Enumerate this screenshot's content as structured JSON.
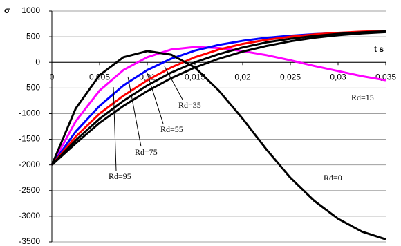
{
  "chart_data": {
    "type": "line",
    "y_label": "σ",
    "x_label": "t s",
    "x": [
      0,
      0.0025,
      0.005,
      0.0075,
      0.01,
      0.0125,
      0.015,
      0.0175,
      0.02,
      0.0225,
      0.025,
      0.0275,
      0.03,
      0.0325,
      0.035
    ],
    "series": [
      {
        "name": "Rd=0",
        "color": "#000000",
        "values": [
          -2000,
          -900,
          -250,
          100,
          220,
          150,
          -100,
          -550,
          -1100,
          -1700,
          -2250,
          -2700,
          -3050,
          -3300,
          -3450
        ]
      },
      {
        "name": "Rd=15",
        "color": "#ff00ff",
        "values": [
          -2000,
          -1150,
          -550,
          -150,
          100,
          250,
          300,
          280,
          220,
          140,
          40,
          -70,
          -170,
          -270,
          -350
        ]
      },
      {
        "name": "Rd=35",
        "color": "#0000ff",
        "values": [
          -2000,
          -1350,
          -850,
          -450,
          -150,
          70,
          230,
          340,
          420,
          480,
          520,
          550,
          570,
          585,
          595
        ]
      },
      {
        "name": "Rd=55",
        "color": "#ff0000",
        "values": [
          -2000,
          -1450,
          -1000,
          -650,
          -350,
          -100,
          100,
          250,
          360,
          440,
          500,
          545,
          575,
          600,
          615
        ]
      },
      {
        "name": "Rd=75",
        "color": "#000000",
        "values": [
          -2000,
          -1520,
          -1100,
          -750,
          -450,
          -200,
          0,
          160,
          290,
          390,
          460,
          515,
          555,
          585,
          605
        ]
      },
      {
        "name": "Rd=95",
        "color": "#000000",
        "values": [
          -2000,
          -1580,
          -1180,
          -850,
          -560,
          -310,
          -100,
          70,
          210,
          320,
          410,
          480,
          530,
          565,
          590
        ]
      }
    ],
    "xlim": [
      0,
      0.035
    ],
    "xticks": [
      0,
      {
        "value": 0.005,
        "label": "0,005"
      },
      {
        "value": 0.01,
        "label": "0,01"
      },
      {
        "value": 0.015,
        "label": "0,015"
      },
      {
        "value": 0.02,
        "label": "0,02"
      },
      {
        "value": 0.025,
        "label": "0,025"
      },
      {
        "value": 0.03,
        "label": "0,03"
      },
      {
        "value": 0.035,
        "label": "0,035"
      }
    ],
    "ylim": [
      -3500,
      1000
    ],
    "yticks": [
      -3500,
      -3000,
      -2500,
      -2000,
      -1500,
      -1000,
      -500,
      0,
      500,
      1000
    ],
    "grid": true
  }
}
